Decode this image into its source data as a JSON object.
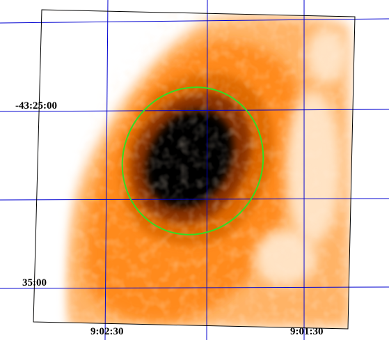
{
  "image": {
    "colormap": [
      "#ffffff",
      "#ffe3c4",
      "#ffb366",
      "#ff8a1a",
      "#e06a00",
      "#8a3000",
      "#2a0800",
      "#000000"
    ],
    "grid_color": "#0000d0",
    "frame_color": "#000000",
    "region_color": "#33dd22",
    "background": "#ffffff"
  },
  "labels": {
    "dec_top": "-43:25:00",
    "dec_bottom": "35:00",
    "ra_left": "9:02:30",
    "ra_right": "9:01:30"
  }
}
